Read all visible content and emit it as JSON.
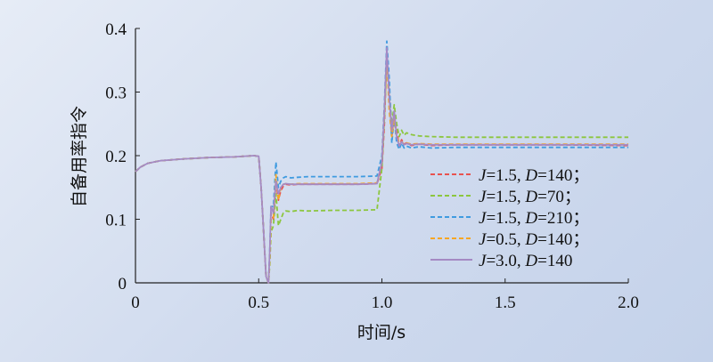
{
  "chart_data": {
    "type": "line",
    "xlabel": "时间/s",
    "ylabel": "自备用率指令",
    "xlim": [
      0,
      2.0
    ],
    "ylim": [
      0,
      0.4
    ],
    "x_ticks": [
      "0",
      "0.5",
      "1.0",
      "1.5",
      "2.0"
    ],
    "y_ticks": [
      "0",
      "0.1",
      "0.2",
      "0.3",
      "0.4"
    ],
    "legend_position": "bottom-right",
    "legend_entries": [
      {
        "J": "1.5",
        "D": "140",
        "suffix": "；"
      },
      {
        "J": "1.5",
        "D": "70",
        "suffix": "；"
      },
      {
        "J": "1.5",
        "D": "210",
        "suffix": "；"
      },
      {
        "J": "0.5",
        "D": "140",
        "suffix": "；"
      },
      {
        "J": "3.0",
        "D": "140",
        "suffix": ""
      }
    ],
    "series": [
      {
        "color": "#e8524f",
        "dashed": true,
        "x": [
          0,
          0.02,
          0.05,
          0.1,
          0.2,
          0.3,
          0.4,
          0.48,
          0.5,
          0.51,
          0.52,
          0.53,
          0.54,
          0.545,
          0.55,
          0.56,
          0.57,
          0.58,
          0.59,
          0.6,
          0.61,
          0.63,
          0.66,
          0.7,
          0.8,
          0.9,
          0.98,
          1.0,
          1.01,
          1.02,
          1.03,
          1.04,
          1.05,
          1.06,
          1.07,
          1.08,
          1.09,
          1.1,
          1.12,
          1.15,
          1.2,
          1.3,
          1.5,
          1.7,
          2.0
        ],
        "y": [
          0.175,
          0.182,
          0.188,
          0.192,
          0.195,
          0.197,
          0.198,
          0.2,
          0.199,
          0.15,
          0.08,
          0.01,
          0.0,
          0.04,
          0.11,
          0.1,
          0.16,
          0.13,
          0.145,
          0.152,
          0.155,
          0.154,
          0.155,
          0.155,
          0.155,
          0.155,
          0.156,
          0.18,
          0.25,
          0.36,
          0.3,
          0.23,
          0.27,
          0.24,
          0.215,
          0.225,
          0.218,
          0.22,
          0.216,
          0.218,
          0.216,
          0.217,
          0.217,
          0.217,
          0.216
        ]
      },
      {
        "color": "#8cc63e",
        "dashed": true,
        "x": [
          0,
          0.02,
          0.05,
          0.1,
          0.2,
          0.3,
          0.4,
          0.48,
          0.5,
          0.51,
          0.52,
          0.53,
          0.54,
          0.545,
          0.55,
          0.56,
          0.57,
          0.58,
          0.59,
          0.6,
          0.61,
          0.63,
          0.66,
          0.7,
          0.8,
          0.9,
          0.98,
          1.0,
          1.01,
          1.02,
          1.03,
          1.04,
          1.05,
          1.06,
          1.07,
          1.08,
          1.09,
          1.1,
          1.12,
          1.15,
          1.2,
          1.3,
          1.5,
          1.7,
          2.0
        ],
        "y": [
          0.175,
          0.182,
          0.188,
          0.192,
          0.195,
          0.197,
          0.198,
          0.2,
          0.199,
          0.15,
          0.08,
          0.01,
          0.0,
          0.03,
          0.08,
          0.09,
          0.14,
          0.09,
          0.1,
          0.11,
          0.113,
          0.112,
          0.114,
          0.113,
          0.114,
          0.114,
          0.115,
          0.18,
          0.26,
          0.35,
          0.3,
          0.25,
          0.28,
          0.25,
          0.23,
          0.24,
          0.232,
          0.236,
          0.233,
          0.231,
          0.23,
          0.229,
          0.229,
          0.229,
          0.229
        ]
      },
      {
        "color": "#3f9be0",
        "dashed": true,
        "x": [
          0,
          0.02,
          0.05,
          0.1,
          0.2,
          0.3,
          0.4,
          0.48,
          0.5,
          0.51,
          0.52,
          0.53,
          0.54,
          0.545,
          0.55,
          0.56,
          0.57,
          0.58,
          0.59,
          0.6,
          0.61,
          0.63,
          0.66,
          0.7,
          0.8,
          0.9,
          0.98,
          1.0,
          1.01,
          1.02,
          1.03,
          1.04,
          1.05,
          1.06,
          1.07,
          1.08,
          1.09,
          1.1,
          1.12,
          1.15,
          1.2,
          1.3,
          1.5,
          1.7,
          2.0
        ],
        "y": [
          0.175,
          0.182,
          0.188,
          0.192,
          0.195,
          0.197,
          0.198,
          0.2,
          0.199,
          0.15,
          0.08,
          0.01,
          0.0,
          0.05,
          0.12,
          0.12,
          0.19,
          0.15,
          0.16,
          0.165,
          0.167,
          0.165,
          0.166,
          0.167,
          0.167,
          0.167,
          0.168,
          0.2,
          0.28,
          0.38,
          0.32,
          0.22,
          0.26,
          0.22,
          0.21,
          0.22,
          0.212,
          0.215,
          0.212,
          0.214,
          0.212,
          0.213,
          0.213,
          0.213,
          0.213
        ]
      },
      {
        "color": "#f6a623",
        "dashed": true,
        "x": [
          0,
          0.02,
          0.05,
          0.1,
          0.2,
          0.3,
          0.4,
          0.48,
          0.5,
          0.51,
          0.52,
          0.53,
          0.54,
          0.545,
          0.55,
          0.56,
          0.57,
          0.58,
          0.59,
          0.6,
          0.61,
          0.63,
          0.66,
          0.7,
          0.8,
          0.9,
          0.98,
          1.0,
          1.01,
          1.02,
          1.03,
          1.04,
          1.05,
          1.06,
          1.07,
          1.08,
          1.09,
          1.1,
          1.12,
          1.15,
          1.2,
          1.3,
          1.5,
          1.7,
          2.0
        ],
        "y": [
          0.175,
          0.182,
          0.188,
          0.192,
          0.195,
          0.197,
          0.198,
          0.2,
          0.199,
          0.15,
          0.08,
          0.01,
          0.0,
          0.04,
          0.1,
          0.1,
          0.17,
          0.13,
          0.15,
          0.155,
          0.156,
          0.155,
          0.156,
          0.156,
          0.156,
          0.156,
          0.157,
          0.19,
          0.27,
          0.35,
          0.27,
          0.23,
          0.26,
          0.23,
          0.22,
          0.222,
          0.218,
          0.22,
          0.218,
          0.219,
          0.218,
          0.218,
          0.218,
          0.218,
          0.218
        ]
      },
      {
        "color": "#a58ac4",
        "dashed": false,
        "x": [
          0,
          0.02,
          0.05,
          0.1,
          0.2,
          0.3,
          0.4,
          0.48,
          0.5,
          0.51,
          0.52,
          0.53,
          0.54,
          0.545,
          0.55,
          0.56,
          0.57,
          0.58,
          0.59,
          0.6,
          0.61,
          0.63,
          0.66,
          0.7,
          0.8,
          0.9,
          0.98,
          1.0,
          1.01,
          1.02,
          1.03,
          1.04,
          1.05,
          1.06,
          1.07,
          1.08,
          1.09,
          1.1,
          1.12,
          1.15,
          1.2,
          1.3,
          1.5,
          1.7,
          2.0
        ],
        "y": [
          0.175,
          0.182,
          0.188,
          0.192,
          0.195,
          0.197,
          0.198,
          0.2,
          0.199,
          0.15,
          0.08,
          0.01,
          0.0,
          0.05,
          0.12,
          0.11,
          0.16,
          0.14,
          0.15,
          0.155,
          0.156,
          0.155,
          0.155,
          0.155,
          0.155,
          0.155,
          0.156,
          0.19,
          0.27,
          0.37,
          0.29,
          0.24,
          0.27,
          0.23,
          0.215,
          0.222,
          0.217,
          0.219,
          0.217,
          0.218,
          0.217,
          0.217,
          0.217,
          0.217,
          0.217
        ]
      }
    ]
  }
}
